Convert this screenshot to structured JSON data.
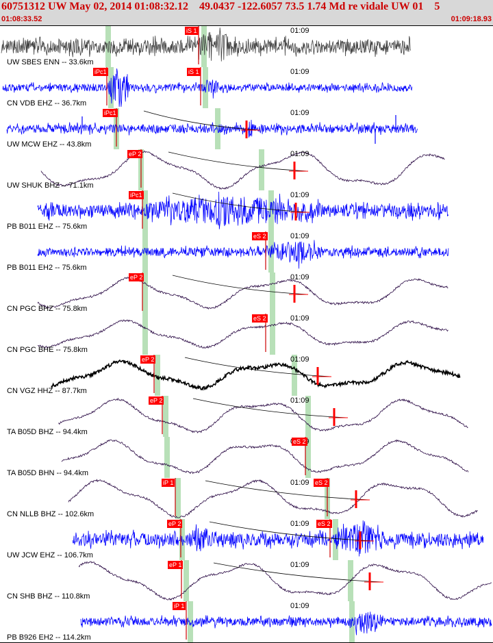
{
  "header": {
    "title": "60751312 UW May 02, 2014 01:08:32.12    49.0437 -122.6057 73.5 1.74 Md re vidale UW 01    5",
    "start_time": "01:08:33.52",
    "end_time": "01:09:18.93"
  },
  "time_tick": "01:09",
  "colors": {
    "header_text": "#cc0000",
    "pick": "#ff0000",
    "pick_window": "#b8e0b8",
    "trace_blue": "#0000ff",
    "trace_dark": "#2a0a44",
    "trace_black": "#000000"
  },
  "traces": [
    {
      "label": "UW SBES ENN -- 33.6km",
      "color": "#404040",
      "picks": [
        "iS 1"
      ]
    },
    {
      "label": "CN VDB EHZ -- 36.7km",
      "color": "#0000ff",
      "picks": [
        "iPc1",
        "iS 1"
      ]
    },
    {
      "label": "UW MCW EHZ -- 43.8km",
      "color": "#0000ff",
      "picks": [
        "iPc1"
      ]
    },
    {
      "label": "UW SHUK BHZ -- 71.1km",
      "color": "#2a0a44",
      "picks": [
        "eP 2"
      ]
    },
    {
      "label": "PB B011 EHZ -- 75.6km",
      "color": "#0000ff",
      "picks": [
        "iPc1"
      ]
    },
    {
      "label": "PB B011 EH2 -- 75.6km",
      "color": "#0000ff",
      "picks": [
        "eS 2"
      ]
    },
    {
      "label": "CN PGC BHZ -- 75.8km",
      "color": "#2a0a44",
      "picks": [
        "eP 2"
      ]
    },
    {
      "label": "CN PGC BHE -- 75.8km",
      "color": "#2a0a44",
      "picks": [
        "eS 2"
      ]
    },
    {
      "label": "CN VGZ HHZ -- 87.7km",
      "color": "#000000",
      "picks": [
        "eP 2"
      ]
    },
    {
      "label": "TA B05D BHZ -- 94.4km",
      "color": "#2a0a44",
      "picks": [
        "eP 2"
      ]
    },
    {
      "label": "TA B05D BHN -- 94.4km",
      "color": "#2a0a44",
      "picks": [
        "eS 2"
      ]
    },
    {
      "label": "CN NLLB BHZ -- 102.6km",
      "color": "#2a0a44",
      "picks": [
        "iP 1",
        "eS 2"
      ]
    },
    {
      "label": "UW JCW EHZ -- 106.7km",
      "color": "#0000ff",
      "picks": [
        "eP 2",
        "eS 2"
      ]
    },
    {
      "label": "CN SHB BHZ -- 110.8km",
      "color": "#2a0a44",
      "picks": [
        "eP 1"
      ]
    },
    {
      "label": "PB B926 EH2 -- 114.2km",
      "color": "#0000ff",
      "picks": [
        "iP 1"
      ]
    }
  ]
}
